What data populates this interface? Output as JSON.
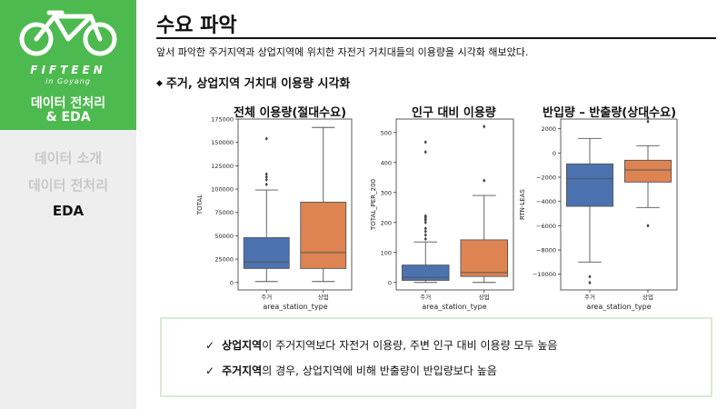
{
  "sidebar": {
    "brand_name": "FIFTEEN",
    "brand_sub": "in Goyang",
    "section_line1": "데이터 전처리",
    "section_line2": "& EDA",
    "nav": [
      "데이터 소개",
      "데이터 전처리",
      "EDA"
    ],
    "active_nav": "EDA"
  },
  "header": {
    "title": "수요 파악",
    "subtitle": "앞서 파악한 주거지역과 상업지역에 위치한 자전거 거치대들의 이용량을 시각화 해보았다.",
    "section": "주거, 상업지역 거치대 이용량 시각화",
    "bullet_glyph": "◆"
  },
  "colors": {
    "brand_green": "#4dba4f",
    "box_blue": "#4c72b0",
    "box_orange": "#dd8452"
  },
  "chart_data": [
    {
      "type": "boxplot",
      "title": "전체 이용량(절대수요)",
      "xlabel": "area_station_type",
      "ylabel": "TOTAL",
      "categories": [
        "주거",
        "상업"
      ],
      "ylim": [
        -8000,
        175000
      ],
      "yticks": [
        0,
        25000,
        50000,
        75000,
        100000,
        125000,
        150000,
        175000
      ],
      "series": [
        {
          "name": "주거",
          "min": 1000,
          "q1": 15000,
          "median": 22000,
          "q3": 48000,
          "max": 99000,
          "outliers": [
            105000,
            110000,
            113000,
            116000,
            154000
          ]
        },
        {
          "name": "상업",
          "min": 1000,
          "q1": 15000,
          "median": 32000,
          "q3": 86000,
          "max": 166000,
          "outliers": []
        }
      ]
    },
    {
      "type": "boxplot",
      "title": "인구 대비 이용량",
      "xlabel": "area_station_type",
      "ylabel": "TOTAL_PER_200",
      "categories": [
        "주거",
        "상업"
      ],
      "ylim": [
        -25,
        545
      ],
      "yticks": [
        0,
        100,
        200,
        300,
        400,
        500
      ],
      "series": [
        {
          "name": "주거",
          "min": 0,
          "q1": 7,
          "median": 17,
          "q3": 58,
          "max": 135,
          "outliers": [
            145,
            158,
            170,
            180,
            200,
            208,
            212,
            218,
            222,
            435,
            468
          ]
        },
        {
          "name": "상업",
          "min": 0,
          "q1": 20,
          "median": 33,
          "q3": 142,
          "max": 290,
          "outliers": [
            340,
            520
          ]
        }
      ]
    },
    {
      "type": "boxplot",
      "title": "반입량 – 반출량(상대수요)",
      "xlabel": "area_station_type",
      "ylabel": "RTN-LEAS",
      "categories": [
        "주거",
        "상업"
      ],
      "ylim": [
        -11300,
        2800
      ],
      "yticks": [
        -10000,
        -8000,
        -6000,
        -4000,
        -2000,
        0,
        2000
      ],
      "series": [
        {
          "name": "주거",
          "min": -9000,
          "q1": -4400,
          "median": -2100,
          "q3": -900,
          "max": 1200,
          "outliers": [
            -10200,
            -10700
          ]
        },
        {
          "name": "상업",
          "min": -4500,
          "q1": -2400,
          "median": -1400,
          "q3": -600,
          "max": 600,
          "outliers": [
            2600,
            2900,
            -6000
          ]
        }
      ]
    }
  ],
  "summary": [
    {
      "check": "✓",
      "bold": "상업지역",
      "rest": "이 주거지역보다 자전거 이용량, 주변 인구 대비 이용량 모두 높음"
    },
    {
      "check": "✓",
      "bold": "주거지역",
      "rest": "의 경우, 상업지역에 비해 반출량이 반입량보다 높음"
    }
  ]
}
